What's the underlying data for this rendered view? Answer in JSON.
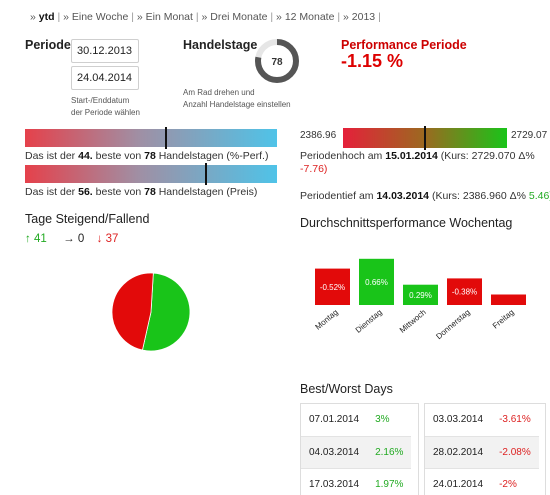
{
  "tabs": [
    {
      "label": "ytd",
      "active": true
    },
    {
      "label": "Eine Woche",
      "active": false
    },
    {
      "label": "Ein Monat",
      "active": false
    },
    {
      "label": "Drei Monate",
      "active": false
    },
    {
      "label": "12 Monate",
      "active": false
    },
    {
      "label": "2013",
      "active": false
    }
  ],
  "tab_prefix": "»",
  "tab_sep": "|",
  "periode": {
    "label": "Periode",
    "start": "30.12.2013",
    "end": "24.04.2014",
    "hint_line1": "Start-/Enddatum",
    "hint_line2": "der Periode wählen"
  },
  "handelstage": {
    "label": "Handelstage",
    "value": "78",
    "gauge_fraction": 0.78,
    "hint_line1": "Am Rad drehen und",
    "hint_line2": "Anzahl Handelstage einstellen"
  },
  "performance": {
    "title": "Performance Periode",
    "value": "-1.15 %"
  },
  "rank_perf": {
    "prefix": "Das ist der",
    "rank": "44.",
    "mid": "beste von",
    "total": "78",
    "suffix": "Handelstagen (%-Perf.)",
    "fraction": 0.56
  },
  "rank_price": {
    "prefix": "Das ist der",
    "rank": "56.",
    "mid": "beste von",
    "total": "78",
    "suffix": "Handelstagen (Preis)",
    "fraction": 0.72
  },
  "range": {
    "low": "2386.96",
    "high": "2729.07",
    "fraction": 0.5,
    "high_text_pre": "Periodenhoch am",
    "high_date": "15.01.2014",
    "high_kurs": "(Kurs: 2729.070 Δ%",
    "high_delta": "-7.76)",
    "low_text_pre": "Periodentief am",
    "low_date": "14.03.2014",
    "low_kurs": "(Kurs: 2386.960 Δ%",
    "low_delta": "5.46)"
  },
  "updown": {
    "title": "Tage Steigend/Fallend",
    "up": "41",
    "flat": "0",
    "down": "37",
    "up_arrow": "↑",
    "flat_arrow": "→",
    "down_arrow": "↓"
  },
  "weekday": {
    "title": "Durchschnittsperformance Wochentag"
  },
  "chart_data": [
    {
      "type": "pie",
      "categories": [
        "Steigend",
        "Fallend"
      ],
      "values": [
        41,
        37
      ],
      "colors": [
        "#19c419",
        "#e20a0a"
      ]
    },
    {
      "type": "bar",
      "categories": [
        "Montag",
        "Dienstag",
        "Mittwoch",
        "Donnerstag",
        "Freitag"
      ],
      "values": [
        -0.52,
        0.66,
        0.29,
        -0.38,
        -0.15
      ],
      "labels": [
        "-0.52%",
        "0.66%",
        "0.29%",
        "-0.38%",
        ""
      ],
      "colors": [
        "#e20a0a",
        "#19c419",
        "#19c419",
        "#e20a0a",
        "#e20a0a"
      ]
    }
  ],
  "bestworst": {
    "title": "Best/Worst Days",
    "best": [
      {
        "date": "07.01.2014",
        "value": "3%"
      },
      {
        "date": "04.03.2014",
        "value": "2.16%"
      },
      {
        "date": "17.03.2014",
        "value": "1.97%"
      }
    ],
    "worst": [
      {
        "date": "03.03.2014",
        "value": "-3.61%"
      },
      {
        "date": "28.02.2014",
        "value": "-2.08%"
      },
      {
        "date": "24.01.2014",
        "value": "-2%"
      }
    ]
  },
  "colors": {
    "green": "#19c419",
    "red": "#e20a0a",
    "blue": "#4fc3e8",
    "gauge_track": "#e6e6e6",
    "gauge_fill": "#555555"
  }
}
